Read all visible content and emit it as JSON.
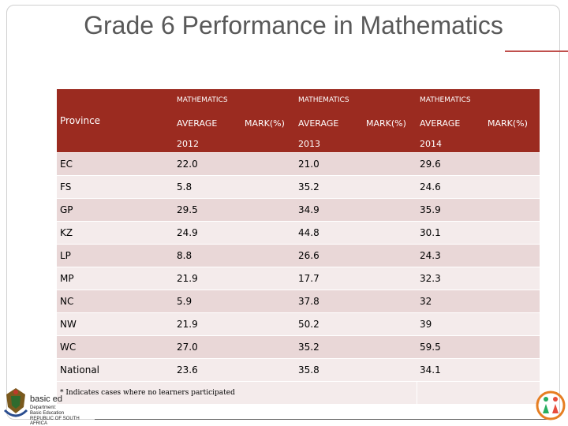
{
  "title": "Grade 6 Performance in Mathematics",
  "table": {
    "province_label": "Province",
    "subject_labels": [
      "MATHEMATICS",
      "MATHEMATICS",
      "MATHEMATICS"
    ],
    "average_label": "AVERAGE",
    "mark_label": "MARK(%)",
    "years": [
      "2012",
      "2013",
      "2014"
    ],
    "rows": [
      {
        "province": "EC",
        "v2012": "22.0",
        "v2013": "21.0",
        "v2014": "29.6"
      },
      {
        "province": "FS",
        "v2012": "5.8",
        "v2013": "35.2",
        "v2014": "24.6"
      },
      {
        "province": "GP",
        "v2012": "29.5",
        "v2013": "34.9",
        "v2014": "35.9"
      },
      {
        "province": "KZ",
        "v2012": "24.9",
        "v2013": "44.8",
        "v2014": "30.1"
      },
      {
        "province": "LP",
        "v2012": "8.8",
        "v2013": "26.6",
        "v2014": "24.3"
      },
      {
        "province": "MP",
        "v2012": "21.9",
        "v2013": "17.7",
        "v2014": "32.3"
      },
      {
        "province": "NC",
        "v2012": "5.9",
        "v2013": "37.8",
        "v2014": "32"
      },
      {
        "province": "NW",
        "v2012": "21.9",
        "v2013": "50.2",
        "v2014": "39"
      },
      {
        "province": "WC",
        "v2012": "27.0",
        "v2013": "35.2",
        "v2014": "59.5"
      },
      {
        "province": "National",
        "v2012": "23.6",
        "v2013": "35.8",
        "v2014": "34.1"
      }
    ],
    "footnote": "* Indicates cases where no learners participated"
  },
  "logo": {
    "line1": "basic ed",
    "line2": "Department:",
    "line3": "Basic Education",
    "line4": "REPUBLIC OF SOUTH AFRICA"
  },
  "colors": {
    "header": "#9b2b20",
    "row_dark": "#e9d7d7",
    "row_light": "#f4ebeb",
    "accent_line": "#c0504d"
  }
}
